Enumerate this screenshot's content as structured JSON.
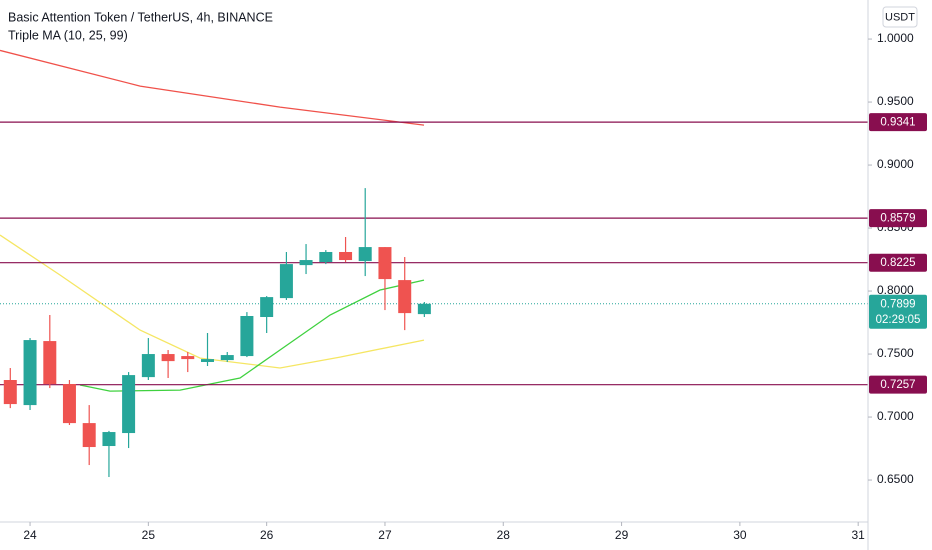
{
  "chart_data": {
    "type": "candlestick",
    "title": "Basic Attention Token / TetherUS, 4h, BINANCE",
    "indicator": "Triple MA (10, 25, 99)",
    "currency": "USDT",
    "x": [
      23.833,
      24,
      24.167,
      24.333,
      24.5,
      24.667,
      24.833,
      25,
      25.167,
      25.333,
      25.5,
      25.667,
      25.833,
      26,
      26.167,
      26.333,
      26.5,
      26.667,
      26.833,
      27,
      27.167,
      27.333
    ],
    "open": [
      0.7294,
      0.7095,
      0.7603,
      0.7262,
      0.6952,
      0.677,
      0.6873,
      0.7317,
      0.75,
      0.7484,
      0.7437,
      0.7452,
      0.7484,
      0.7794,
      0.7944,
      0.8206,
      0.823,
      0.831,
      0.8238,
      0.8349,
      0.8087,
      0.7817
    ],
    "high": [
      0.7389,
      0.7627,
      0.781,
      0.7294,
      0.7095,
      0.689,
      0.7357,
      0.7627,
      0.7532,
      0.7516,
      0.7667,
      0.7516,
      0.7833,
      0.796,
      0.831,
      0.8373,
      0.8325,
      0.8429,
      0.8817,
      0.8349,
      0.827,
      0.7913
    ],
    "low": [
      0.7071,
      0.7056,
      0.723,
      0.6937,
      0.6619,
      0.6524,
      0.6754,
      0.7294,
      0.731,
      0.7357,
      0.7405,
      0.7437,
      0.7476,
      0.7667,
      0.7929,
      0.8135,
      0.8214,
      0.823,
      0.8119,
      0.7849,
      0.769,
      0.7794
    ],
    "close": [
      0.7103,
      0.7611,
      0.7262,
      0.6952,
      0.6762,
      0.6881,
      0.7333,
      0.75,
      0.7444,
      0.746,
      0.746,
      0.7492,
      0.7802,
      0.7952,
      0.8214,
      0.8246,
      0.831,
      0.8246,
      0.8349,
      0.8095,
      0.7825,
      0.7899
    ],
    "up_color": "#26a69a",
    "down_color": "#ef5350",
    "series": [
      {
        "color": "#f0514a",
        "x": [
          23.746,
          24.93,
          26.113,
          27.33
        ],
        "values": [
          0.991,
          0.9627,
          0.946,
          0.9317
        ]
      },
      {
        "color": "#f5e663",
        "x": [
          23.746,
          24.253,
          24.93,
          25.437,
          26.113,
          26.62,
          27.33
        ],
        "values": [
          0.8444,
          0.8127,
          0.769,
          0.7468,
          0.7389,
          0.7476,
          0.7611
        ]
      },
      {
        "color": "#3fd13f",
        "x": [
          24.422,
          24.676,
          25.268,
          25.775,
          26.113,
          26.536,
          26.958,
          27.33
        ],
        "values": [
          0.7254,
          0.7206,
          0.7214,
          0.731,
          0.7532,
          0.781,
          0.8008,
          0.8087
        ]
      }
    ],
    "levels": [
      {
        "value": 0.9341,
        "color": "#880e4f"
      },
      {
        "value": 0.8579,
        "color": "#880e4f"
      },
      {
        "value": 0.8225,
        "color": "#880e4f"
      },
      {
        "value": 0.7257,
        "color": "#880e4f"
      }
    ],
    "last_price": {
      "value": 0.7899,
      "countdown": "02:29:05",
      "color": "#26a69a"
    },
    "xlim": [
      23.746,
      31.083
    ],
    "xticks": [
      24,
      25,
      26,
      27,
      28,
      29,
      30,
      31
    ],
    "ylim": [
      0.6167,
      1.031
    ],
    "yticks": [
      {
        "value": 0.65,
        "label": "0.6500"
      },
      {
        "value": 0.7,
        "label": "0.7000"
      },
      {
        "value": 0.75,
        "label": "0.7500"
      },
      {
        "value": 0.8,
        "label": "0.8000"
      },
      {
        "value": 0.85,
        "label": "0.8500"
      },
      {
        "value": 0.9,
        "label": "0.9000"
      },
      {
        "value": 0.95,
        "label": "0.9500"
      },
      {
        "value": 1.0,
        "label": "1.0000"
      }
    ]
  }
}
